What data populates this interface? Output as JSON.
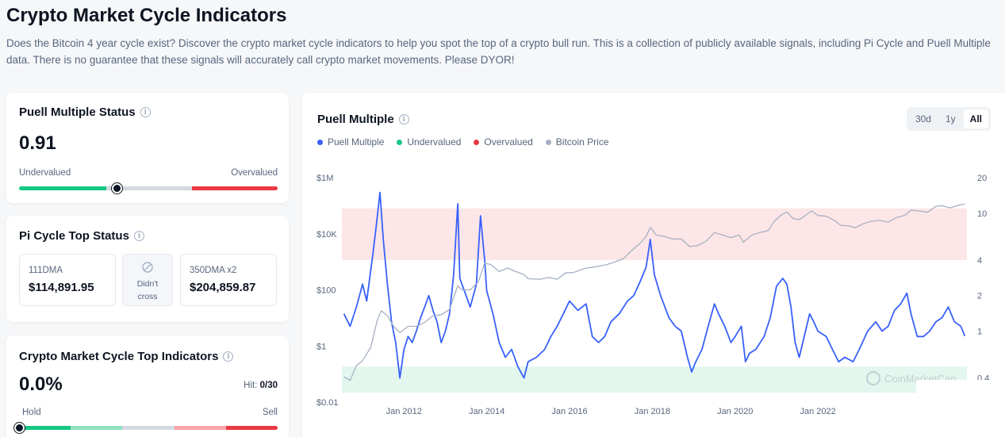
{
  "page": {
    "title": "Crypto Market Cycle Indicators",
    "description": "Does the Bitcoin 4 year cycle exist? Discover the crypto market cycle indicators to help you spot the top of a crypto bull run. This is a collection of publicly available signals, including Pi Cycle and Puell Multiple data. There is no guarantee that these signals will accurately call crypto market movements. Please DYOR!"
  },
  "puell_card": {
    "title": "Puell Multiple Status",
    "value": "0.91",
    "low_label": "Undervalued",
    "high_label": "Overvalued",
    "position_fraction": 0.38,
    "colors": {
      "low": "#16c784",
      "mid": "#d5d9e2",
      "high": "#ea3943"
    }
  },
  "pi_card": {
    "title": "Pi Cycle Top Status",
    "ma111_label": "111DMA",
    "ma111_value": "$114,891.95",
    "status_icon": "not-allowed-icon",
    "status_text_1": "Didn't",
    "status_text_2": "cross",
    "ma350_label": "350DMA x2",
    "ma350_value": "$204,859.87"
  },
  "cmc_card": {
    "title": "Crypto Market Cycle Top Indicators",
    "value": "0.0%",
    "hit_label": "Hit:",
    "hit_value": "0/30",
    "low_label": "Hold",
    "high_label": "Sell",
    "position_fraction": 0.0
  },
  "chart_panel": {
    "title": "Puell Multiple",
    "ranges": [
      "30d",
      "1y",
      "All"
    ],
    "active_range": "All",
    "watermark": "CoinMarketCap"
  },
  "chart_data": {
    "type": "line",
    "title": "Puell Multiple",
    "legend": [
      {
        "name": "Puell Multiple",
        "color": "#3861fb"
      },
      {
        "name": "Undervalued",
        "color": "#16c784"
      },
      {
        "name": "Overvalued",
        "color": "#ea3943"
      },
      {
        "name": "Bitcoin Price",
        "color": "#a6b0c3"
      }
    ],
    "x_ticks": [
      "Jan 2012",
      "Jan 2014",
      "Jan 2016",
      "Jan 2018",
      "Jan 2020",
      "Jan 2022"
    ],
    "x_range": [
      2010.5,
      2025.6
    ],
    "left_axis": {
      "scale": "log",
      "ticks": [
        "$1M",
        "$10K",
        "$100",
        "$1",
        "$0.01"
      ],
      "range": [
        0.01,
        1000000
      ]
    },
    "right_axis": {
      "scale": "log",
      "ticks": [
        "20",
        "10",
        "4",
        "2",
        "1",
        "0.4"
      ],
      "range": [
        0.25,
        20
      ]
    },
    "bands": {
      "overvalued": [
        4,
        11
      ],
      "undervalued": [
        0.3,
        0.5
      ]
    },
    "series": [
      {
        "name": "Puell Multiple",
        "axis": "right",
        "points": [
          [
            2010.55,
            1.4
          ],
          [
            2010.7,
            1.1
          ],
          [
            2010.85,
            1.6
          ],
          [
            2011.0,
            2.5
          ],
          [
            2011.1,
            1.8
          ],
          [
            2011.25,
            4.5
          ],
          [
            2011.35,
            9.0
          ],
          [
            2011.42,
            15.0
          ],
          [
            2011.5,
            6.0
          ],
          [
            2011.6,
            2.5
          ],
          [
            2011.7,
            1.2
          ],
          [
            2011.8,
            0.8
          ],
          [
            2011.9,
            0.4
          ],
          [
            2012.0,
            0.7
          ],
          [
            2012.1,
            0.9
          ],
          [
            2012.2,
            0.8
          ],
          [
            2012.3,
            1.0
          ],
          [
            2012.4,
            1.3
          ],
          [
            2012.5,
            1.6
          ],
          [
            2012.6,
            2.0
          ],
          [
            2012.7,
            1.5
          ],
          [
            2012.8,
            1.2
          ],
          [
            2012.9,
            0.8
          ],
          [
            2013.0,
            1.0
          ],
          [
            2013.1,
            1.4
          ],
          [
            2013.2,
            3.0
          ],
          [
            2013.3,
            12.0
          ],
          [
            2013.35,
            2.8
          ],
          [
            2013.5,
            2.0
          ],
          [
            2013.6,
            1.6
          ],
          [
            2013.75,
            2.5
          ],
          [
            2013.85,
            9.5
          ],
          [
            2013.95,
            4.0
          ],
          [
            2014.0,
            2.2
          ],
          [
            2014.15,
            1.4
          ],
          [
            2014.3,
            0.8
          ],
          [
            2014.45,
            0.6
          ],
          [
            2014.6,
            0.7
          ],
          [
            2014.75,
            0.5
          ],
          [
            2014.9,
            0.4
          ],
          [
            2015.0,
            0.55
          ],
          [
            2015.2,
            0.6
          ],
          [
            2015.4,
            0.7
          ],
          [
            2015.55,
            0.9
          ],
          [
            2015.7,
            1.1
          ],
          [
            2015.85,
            1.4
          ],
          [
            2016.0,
            1.8
          ],
          [
            2016.2,
            1.5
          ],
          [
            2016.4,
            1.7
          ],
          [
            2016.55,
            0.9
          ],
          [
            2016.7,
            0.8
          ],
          [
            2016.85,
            0.9
          ],
          [
            2017.0,
            1.2
          ],
          [
            2017.2,
            1.4
          ],
          [
            2017.4,
            1.8
          ],
          [
            2017.55,
            2.0
          ],
          [
            2017.7,
            2.6
          ],
          [
            2017.85,
            3.5
          ],
          [
            2017.95,
            6.0
          ],
          [
            2018.05,
            3.0
          ],
          [
            2018.2,
            2.0
          ],
          [
            2018.4,
            1.3
          ],
          [
            2018.55,
            1.1
          ],
          [
            2018.7,
            1.0
          ],
          [
            2018.85,
            0.6
          ],
          [
            2018.95,
            0.45
          ],
          [
            2019.05,
            0.55
          ],
          [
            2019.2,
            0.7
          ],
          [
            2019.35,
            1.1
          ],
          [
            2019.5,
            1.7
          ],
          [
            2019.6,
            1.4
          ],
          [
            2019.75,
            1.1
          ],
          [
            2019.9,
            0.8
          ],
          [
            2020.0,
            0.9
          ],
          [
            2020.15,
            1.1
          ],
          [
            2020.25,
            0.55
          ],
          [
            2020.35,
            0.65
          ],
          [
            2020.5,
            0.7
          ],
          [
            2020.7,
            0.9
          ],
          [
            2020.85,
            1.3
          ],
          [
            2021.0,
            2.4
          ],
          [
            2021.15,
            2.8
          ],
          [
            2021.25,
            2.5
          ],
          [
            2021.35,
            1.6
          ],
          [
            2021.45,
            0.8
          ],
          [
            2021.55,
            0.6
          ],
          [
            2021.7,
            1.0
          ],
          [
            2021.8,
            1.4
          ],
          [
            2021.9,
            1.2
          ],
          [
            2022.0,
            1.0
          ],
          [
            2022.2,
            0.9
          ],
          [
            2022.35,
            0.7
          ],
          [
            2022.5,
            0.55
          ],
          [
            2022.65,
            0.6
          ],
          [
            2022.85,
            0.55
          ],
          [
            2023.0,
            0.7
          ],
          [
            2023.2,
            1.0
          ],
          [
            2023.4,
            1.2
          ],
          [
            2023.55,
            1.0
          ],
          [
            2023.7,
            1.1
          ],
          [
            2023.85,
            1.5
          ],
          [
            2024.0,
            1.7
          ],
          [
            2024.15,
            2.1
          ],
          [
            2024.25,
            1.4
          ],
          [
            2024.4,
            0.9
          ],
          [
            2024.55,
            0.9
          ],
          [
            2024.7,
            1.0
          ],
          [
            2024.85,
            1.2
          ],
          [
            2025.0,
            1.3
          ],
          [
            2025.15,
            1.6
          ],
          [
            2025.3,
            1.2
          ],
          [
            2025.45,
            1.1
          ],
          [
            2025.55,
            0.91
          ]
        ]
      },
      {
        "name": "Bitcoin Price",
        "axis": "left",
        "points": [
          [
            2010.55,
            0.08
          ],
          [
            2010.7,
            0.06
          ],
          [
            2010.85,
            0.2
          ],
          [
            2011.0,
            0.3
          ],
          [
            2011.2,
            0.9
          ],
          [
            2011.35,
            8.0
          ],
          [
            2011.45,
            18.0
          ],
          [
            2011.6,
            12.0
          ],
          [
            2011.75,
            5.0
          ],
          [
            2011.9,
            3.0
          ],
          [
            2012.1,
            5.0
          ],
          [
            2012.3,
            5.0
          ],
          [
            2012.5,
            7.0
          ],
          [
            2012.7,
            12.0
          ],
          [
            2012.9,
            13.0
          ],
          [
            2013.1,
            20.0
          ],
          [
            2013.3,
            140.0
          ],
          [
            2013.4,
            100.0
          ],
          [
            2013.6,
            100.0
          ],
          [
            2013.8,
            200.0
          ],
          [
            2013.95,
            900.0
          ],
          [
            2014.1,
            800.0
          ],
          [
            2014.3,
            450.0
          ],
          [
            2014.5,
            600.0
          ],
          [
            2014.7,
            450.0
          ],
          [
            2014.9,
            350.0
          ],
          [
            2015.0,
            250.0
          ],
          [
            2015.3,
            240.0
          ],
          [
            2015.5,
            280.0
          ],
          [
            2015.7,
            240.0
          ],
          [
            2015.9,
            400.0
          ],
          [
            2016.1,
            420.0
          ],
          [
            2016.4,
            600.0
          ],
          [
            2016.6,
            650.0
          ],
          [
            2016.9,
            800.0
          ],
          [
            2017.1,
            1000.0
          ],
          [
            2017.3,
            1300.0
          ],
          [
            2017.5,
            2500.0
          ],
          [
            2017.7,
            4500.0
          ],
          [
            2017.85,
            8000.0
          ],
          [
            2017.95,
            17000.0
          ],
          [
            2018.1,
            9000.0
          ],
          [
            2018.3,
            8000.0
          ],
          [
            2018.5,
            6500.0
          ],
          [
            2018.7,
            6500.0
          ],
          [
            2018.9,
            3500.0
          ],
          [
            2019.1,
            3800.0
          ],
          [
            2019.3,
            5500.0
          ],
          [
            2019.5,
            11000.0
          ],
          [
            2019.7,
            9000.0
          ],
          [
            2019.9,
            7200.0
          ],
          [
            2020.1,
            9000.0
          ],
          [
            2020.2,
            5000.0
          ],
          [
            2020.4,
            9000.0
          ],
          [
            2020.6,
            11000.0
          ],
          [
            2020.8,
            13000.0
          ],
          [
            2020.95,
            28000.0
          ],
          [
            2021.1,
            45000.0
          ],
          [
            2021.25,
            60000.0
          ],
          [
            2021.4,
            35000.0
          ],
          [
            2021.55,
            32000.0
          ],
          [
            2021.7,
            45000.0
          ],
          [
            2021.85,
            65000.0
          ],
          [
            2022.0,
            45000.0
          ],
          [
            2022.2,
            42000.0
          ],
          [
            2022.4,
            30000.0
          ],
          [
            2022.55,
            20000.0
          ],
          [
            2022.75,
            19000.0
          ],
          [
            2022.9,
            16500.0
          ],
          [
            2023.1,
            23000.0
          ],
          [
            2023.3,
            28000.0
          ],
          [
            2023.5,
            30000.0
          ],
          [
            2023.7,
            26000.0
          ],
          [
            2023.9,
            38000.0
          ],
          [
            2024.1,
            45000.0
          ],
          [
            2024.25,
            70000.0
          ],
          [
            2024.45,
            65000.0
          ],
          [
            2024.65,
            58000.0
          ],
          [
            2024.85,
            95000.0
          ],
          [
            2025.0,
            100000.0
          ],
          [
            2025.2,
            84000.0
          ],
          [
            2025.4,
            105000.0
          ],
          [
            2025.55,
            115000.0
          ]
        ]
      }
    ]
  }
}
